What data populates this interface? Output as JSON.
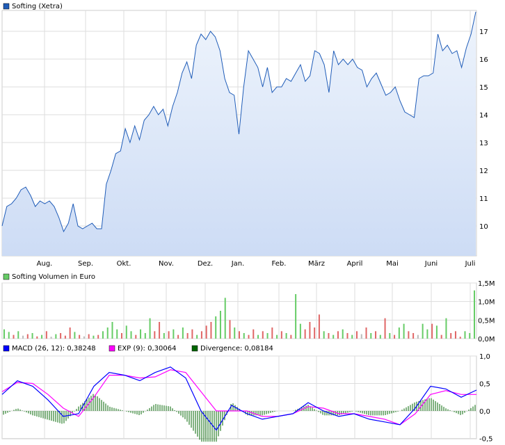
{
  "chart_data": [
    {
      "type": "area",
      "title": "Softing (Xetra)",
      "color": "#1f5cb8",
      "x_ticks": [
        "Aug.",
        "Sep.",
        "Okt.",
        "Nov.",
        "Dez.",
        "Jan.",
        "Feb.",
        "März",
        "April",
        "Mai",
        "Juni",
        "Juli"
      ],
      "y_ticks": [
        "10",
        "11",
        "12",
        "13",
        "14",
        "15",
        "16",
        "17"
      ],
      "ylim": [
        9.3,
        17.8
      ],
      "grid": true,
      "values": [
        10.0,
        10.7,
        10.8,
        11.0,
        11.3,
        11.4,
        11.1,
        10.7,
        10.9,
        10.8,
        10.9,
        10.7,
        10.3,
        9.8,
        10.1,
        10.8,
        10.0,
        9.9,
        10.0,
        10.1,
        9.9,
        9.9,
        11.5,
        12.0,
        12.6,
        12.7,
        13.5,
        13.0,
        13.6,
        13.1,
        13.8,
        14.0,
        14.3,
        14.0,
        14.2,
        13.6,
        14.3,
        14.8,
        15.5,
        15.9,
        15.3,
        16.5,
        16.9,
        16.7,
        17.0,
        16.8,
        16.3,
        15.3,
        14.8,
        14.7,
        13.3,
        15.0,
        16.3,
        16.0,
        15.7,
        15.0,
        15.7,
        14.8,
        15.0,
        15.0,
        15.3,
        15.2,
        15.5,
        15.8,
        15.2,
        15.4,
        16.3,
        16.2,
        15.8,
        14.8,
        16.3,
        15.8,
        16.0,
        15.8,
        16.0,
        15.7,
        15.6,
        15.0,
        15.3,
        15.5,
        15.1,
        14.7,
        14.8,
        15.0,
        14.5,
        14.1,
        14.0,
        13.9,
        15.3,
        15.4,
        15.4,
        15.5,
        16.9,
        16.3,
        16.5,
        16.2,
        16.3,
        15.7,
        16.4,
        16.9,
        17.7
      ]
    },
    {
      "type": "bar",
      "title": "Softing Volumen in Euro",
      "y_ticks": [
        "0,0M",
        "0,5M",
        "1,0M",
        "1,5M"
      ],
      "ylim": [
        0,
        1.5
      ],
      "colors": {
        "up": "#66cc66",
        "down": "#e06666",
        "flat": "#bbbbbb"
      },
      "values": [
        [
          0.25,
          "up"
        ],
        [
          0.18,
          "up"
        ],
        [
          0.1,
          "down"
        ],
        [
          0.2,
          "up"
        ],
        [
          0.08,
          "flat"
        ],
        [
          0.12,
          "down"
        ],
        [
          0.15,
          "up"
        ],
        [
          0.06,
          "down"
        ],
        [
          0.1,
          "up"
        ],
        [
          0.2,
          "down"
        ],
        [
          0.05,
          "flat"
        ],
        [
          0.12,
          "up"
        ],
        [
          0.15,
          "down"
        ],
        [
          0.08,
          "down"
        ],
        [
          0.3,
          "down"
        ],
        [
          0.18,
          "up"
        ],
        [
          0.1,
          "down"
        ],
        [
          0.06,
          "flat"
        ],
        [
          0.12,
          "down"
        ],
        [
          0.08,
          "up"
        ],
        [
          0.1,
          "down"
        ],
        [
          0.2,
          "up"
        ],
        [
          0.3,
          "up"
        ],
        [
          0.45,
          "up"
        ],
        [
          0.25,
          "up"
        ],
        [
          0.15,
          "down"
        ],
        [
          0.35,
          "up"
        ],
        [
          0.2,
          "up"
        ],
        [
          0.1,
          "down"
        ],
        [
          0.25,
          "up"
        ],
        [
          0.15,
          "up"
        ],
        [
          0.55,
          "up"
        ],
        [
          0.2,
          "down"
        ],
        [
          0.45,
          "down"
        ],
        [
          0.15,
          "up"
        ],
        [
          0.2,
          "down"
        ],
        [
          0.25,
          "up"
        ],
        [
          0.1,
          "down"
        ],
        [
          0.3,
          "up"
        ],
        [
          0.15,
          "down"
        ],
        [
          0.25,
          "down"
        ],
        [
          0.1,
          "up"
        ],
        [
          0.2,
          "down"
        ],
        [
          0.35,
          "down"
        ],
        [
          0.45,
          "down"
        ],
        [
          0.6,
          "up"
        ],
        [
          0.75,
          "up"
        ],
        [
          1.1,
          "up"
        ],
        [
          0.5,
          "down"
        ],
        [
          0.3,
          "up"
        ],
        [
          0.2,
          "down"
        ],
        [
          0.15,
          "up"
        ],
        [
          0.1,
          "down"
        ],
        [
          0.25,
          "down"
        ],
        [
          0.1,
          "up"
        ],
        [
          0.2,
          "down"
        ],
        [
          0.15,
          "up"
        ],
        [
          0.3,
          "down"
        ],
        [
          0.1,
          "up"
        ],
        [
          0.2,
          "down"
        ],
        [
          0.15,
          "up"
        ],
        [
          0.1,
          "down"
        ],
        [
          1.2,
          "up"
        ],
        [
          0.4,
          "up"
        ],
        [
          0.25,
          "down"
        ],
        [
          0.45,
          "down"
        ],
        [
          0.3,
          "down"
        ],
        [
          0.65,
          "down"
        ],
        [
          0.2,
          "up"
        ],
        [
          0.15,
          "down"
        ],
        [
          0.1,
          "up"
        ],
        [
          0.2,
          "down"
        ],
        [
          0.25,
          "up"
        ],
        [
          0.15,
          "down"
        ],
        [
          0.1,
          "up"
        ],
        [
          0.2,
          "down"
        ],
        [
          0.12,
          "flat"
        ],
        [
          0.3,
          "down"
        ],
        [
          0.15,
          "up"
        ],
        [
          0.2,
          "down"
        ],
        [
          0.1,
          "up"
        ],
        [
          0.55,
          "down"
        ],
        [
          0.15,
          "up"
        ],
        [
          0.1,
          "down"
        ],
        [
          0.3,
          "up"
        ],
        [
          0.4,
          "up"
        ],
        [
          0.2,
          "down"
        ],
        [
          0.15,
          "down"
        ],
        [
          0.1,
          "flat"
        ],
        [
          0.4,
          "up"
        ],
        [
          0.25,
          "up"
        ],
        [
          0.4,
          "down"
        ],
        [
          0.35,
          "up"
        ],
        [
          0.1,
          "down"
        ],
        [
          0.55,
          "up"
        ],
        [
          0.15,
          "down"
        ],
        [
          0.2,
          "down"
        ],
        [
          0.05,
          "down"
        ],
        [
          0.2,
          "up"
        ],
        [
          0.15,
          "up"
        ],
        [
          1.3,
          "up"
        ]
      ]
    },
    {
      "type": "line",
      "y_ticks": [
        "-0,5",
        "0,0",
        "0,5",
        "1,0"
      ],
      "ylim": [
        -0.5,
        1.0
      ],
      "series": [
        {
          "name": "MACD (26, 12): 0,38248",
          "color": "#0000ff",
          "values": [
            0.3,
            0.55,
            0.45,
            0.2,
            -0.1,
            -0.05,
            0.45,
            0.7,
            0.65,
            0.55,
            0.7,
            0.8,
            0.6,
            0.0,
            -0.35,
            0.1,
            -0.05,
            -0.15,
            -0.1,
            -0.05,
            0.15,
            0.0,
            -0.1,
            -0.05,
            -0.15,
            -0.2,
            -0.25,
            0.05,
            0.45,
            0.4,
            0.25,
            0.38
          ]
        },
        {
          "name": "EXP (9): 0,30064",
          "color": "#ff00ff",
          "values": [
            0.35,
            0.52,
            0.5,
            0.3,
            0.05,
            -0.1,
            0.25,
            0.65,
            0.65,
            0.6,
            0.62,
            0.75,
            0.7,
            0.35,
            0.0,
            0.0,
            0.0,
            -0.1,
            -0.1,
            -0.05,
            0.08,
            0.05,
            -0.05,
            -0.05,
            -0.1,
            -0.15,
            -0.25,
            -0.05,
            0.3,
            0.37,
            0.3,
            0.3
          ]
        },
        {
          "name": "Divergence: 0,08184",
          "color": "#006600"
        }
      ]
    }
  ]
}
